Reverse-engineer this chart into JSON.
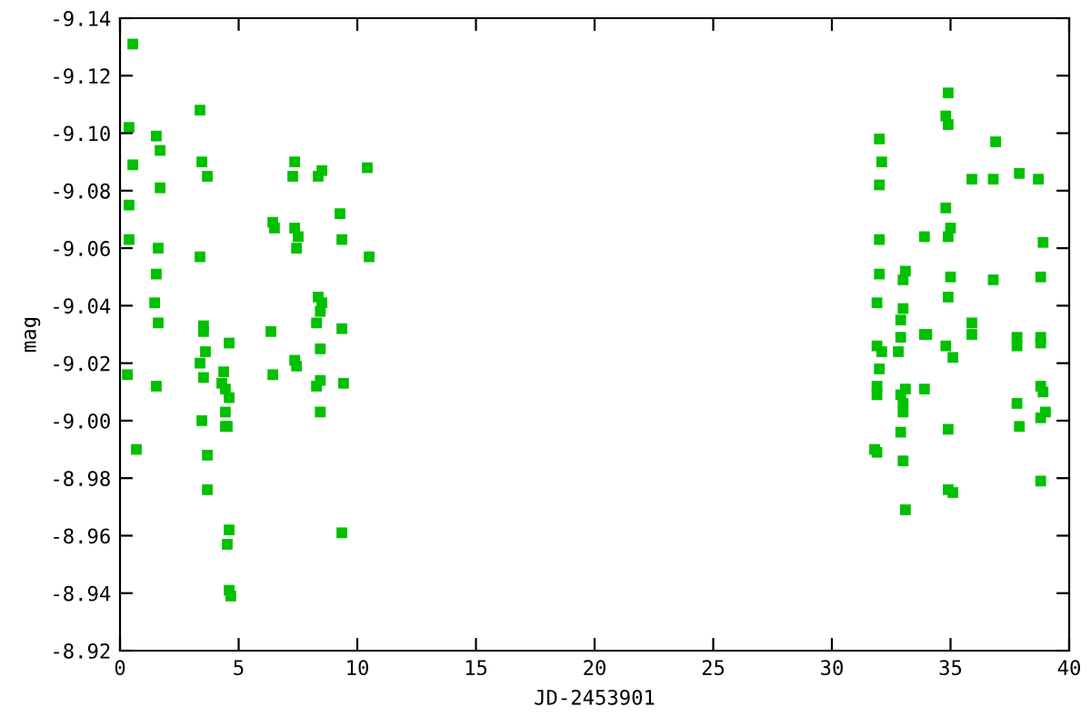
{
  "chart_data": {
    "type": "scatter",
    "xlabel": "JD-2453901",
    "ylabel": "mag",
    "marker": "square",
    "grid": false,
    "legend": false,
    "xlim": [
      0,
      40
    ],
    "xticks": [
      0,
      5,
      10,
      15,
      20,
      25,
      30,
      35,
      40
    ],
    "ylim": [
      -8.92,
      -9.14
    ],
    "yticks": [
      -9.14,
      -9.12,
      {
        "value": -9.1,
        "label": "-9.10"
      },
      -9.08,
      -9.06,
      -9.04,
      -9.02,
      {
        "value": -9.0,
        "label": "-9.00"
      },
      -8.98,
      -8.96,
      -8.94,
      -8.92
    ],
    "series": [
      {
        "color": "#00c000",
        "x": [
          0.54,
          0.38,
          0.54,
          0.38,
          0.38,
          0.31,
          0.69,
          1.53,
          1.69,
          1.69,
          1.61,
          1.53,
          1.46,
          1.61,
          1.53,
          3.37,
          3.45,
          3.68,
          3.37,
          3.52,
          3.52,
          3.6,
          3.37,
          3.52,
          3.45,
          3.68,
          3.68,
          4.6,
          4.37,
          4.29,
          4.44,
          4.6,
          4.44,
          4.44,
          4.52,
          4.6,
          4.52,
          4.6,
          4.67,
          6.36,
          6.44,
          6.51,
          6.44,
          7.36,
          7.28,
          7.36,
          7.51,
          7.44,
          7.36,
          7.44,
          8.35,
          8.35,
          8.51,
          8.44,
          8.28,
          8.44,
          8.28,
          8.44,
          8.44,
          9.27,
          9.35,
          9.35,
          9.42,
          9.35,
          10.42,
          10.5,
          8.51,
          34.9,
          34.8,
          34.9,
          32.0,
          36.9,
          32.1,
          32.0,
          35.9,
          36.8,
          37.9,
          38.7,
          34.8,
          35.0,
          34.9,
          33.9,
          32.0,
          38.9,
          32.0,
          33.1,
          33.0,
          35.0,
          36.8,
          38.8,
          34.9,
          31.9,
          33.0,
          32.9,
          35.9,
          33.9,
          34.0,
          32.9,
          35.9,
          37.8,
          37.8,
          38.8,
          38.8,
          31.9,
          32.1,
          32.8,
          34.8,
          35.1,
          32.0,
          31.9,
          31.9,
          33.1,
          33.9,
          32.9,
          33.0,
          33.0,
          38.8,
          38.9,
          37.8,
          39.0,
          38.8,
          37.9,
          32.9,
          34.9,
          31.8,
          31.9,
          33.0,
          38.8,
          34.9,
          35.1,
          33.1
        ],
        "values": [
          -9.131,
          -9.102,
          -9.089,
          -9.075,
          -9.063,
          -9.016,
          -8.99,
          -9.099,
          -9.094,
          -9.081,
          -9.06,
          -9.051,
          -9.041,
          -9.034,
          -9.012,
          -9.108,
          -9.09,
          -9.085,
          -9.057,
          -9.033,
          -9.031,
          -9.024,
          -9.02,
          -9.015,
          -9.0,
          -8.988,
          -8.976,
          -9.027,
          -9.017,
          -9.013,
          -9.011,
          -9.008,
          -9.003,
          -8.998,
          -8.998,
          -8.962,
          -8.957,
          -8.941,
          -8.939,
          -9.031,
          -9.069,
          -9.067,
          -9.016,
          -9.09,
          -9.085,
          -9.067,
          -9.064,
          -9.06,
          -9.021,
          -9.019,
          -9.085,
          -9.043,
          -9.041,
          -9.038,
          -9.034,
          -9.025,
          -9.012,
          -9.014,
          -9.003,
          -9.072,
          -9.063,
          -9.032,
          -9.013,
          -8.961,
          -9.088,
          -9.057,
          -9.087,
          -9.114,
          -9.106,
          -9.103,
          -9.098,
          -9.097,
          -9.09,
          -9.082,
          -9.084,
          -9.084,
          -9.086,
          -9.084,
          -9.074,
          -9.067,
          -9.064,
          -9.064,
          -9.063,
          -9.062,
          -9.051,
          -9.052,
          -9.049,
          -9.05,
          -9.049,
          -9.05,
          -9.043,
          -9.041,
          -9.039,
          -9.035,
          -9.034,
          -9.03,
          -9.03,
          -9.029,
          -9.03,
          -9.029,
          -9.026,
          -9.029,
          -9.027,
          -9.026,
          -9.024,
          -9.024,
          -9.026,
          -9.022,
          -9.018,
          -9.012,
          -9.009,
          -9.011,
          -9.011,
          -9.009,
          -9.006,
          -9.003,
          -9.012,
          -9.01,
          -9.006,
          -9.003,
          -9.001,
          -8.998,
          -8.996,
          -8.997,
          -8.99,
          -8.989,
          -8.986,
          -8.979,
          -8.976,
          -8.975,
          -8.969
        ]
      }
    ]
  }
}
